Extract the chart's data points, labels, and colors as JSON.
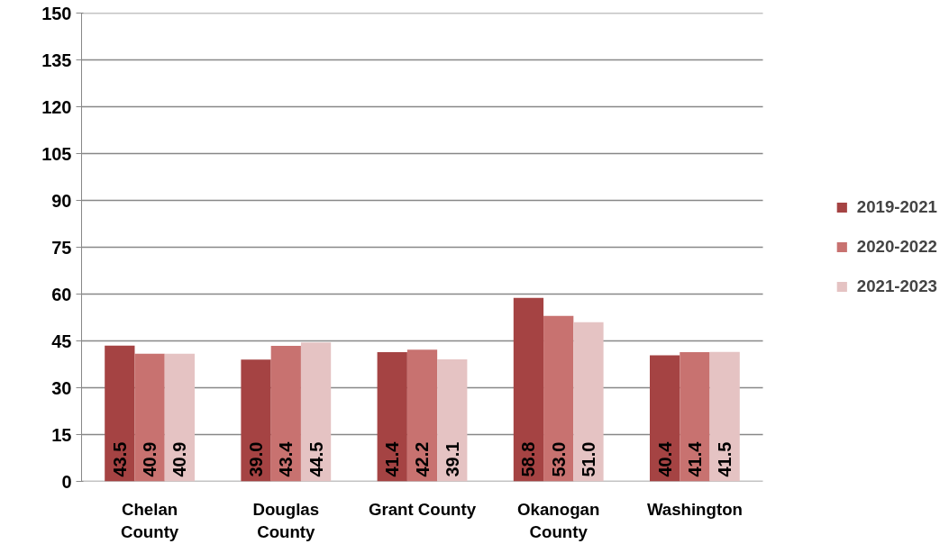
{
  "chart_data": {
    "type": "bar",
    "categories": [
      "Chelan County",
      "Douglas County",
      "Grant County",
      "Okanogan County",
      "Washington"
    ],
    "series": [
      {
        "name": "2019-2021",
        "color": "#a54343",
        "values": [
          43.5,
          39.0,
          41.4,
          58.8,
          40.4
        ],
        "value_labels": [
          "43.5",
          "39.0",
          "41.4",
          "58.8",
          "40.4"
        ]
      },
      {
        "name": "2020-2022",
        "color": "#c87270",
        "values": [
          40.9,
          43.4,
          42.2,
          53.0,
          41.4
        ],
        "value_labels": [
          "40.9",
          "43.4",
          "42.2",
          "53.0",
          "41.4"
        ]
      },
      {
        "name": "2021-2023",
        "color": "#e5c3c3",
        "values": [
          40.9,
          44.5,
          39.1,
          51.0,
          41.5
        ],
        "value_labels": [
          "40.9",
          "44.5",
          "39.1",
          "51.0",
          "41.5"
        ]
      }
    ],
    "ylim": [
      0,
      150
    ],
    "yticks": [
      0,
      15,
      30,
      45,
      60,
      75,
      90,
      105,
      120,
      135,
      150
    ],
    "grid": "y",
    "legend": "right"
  }
}
